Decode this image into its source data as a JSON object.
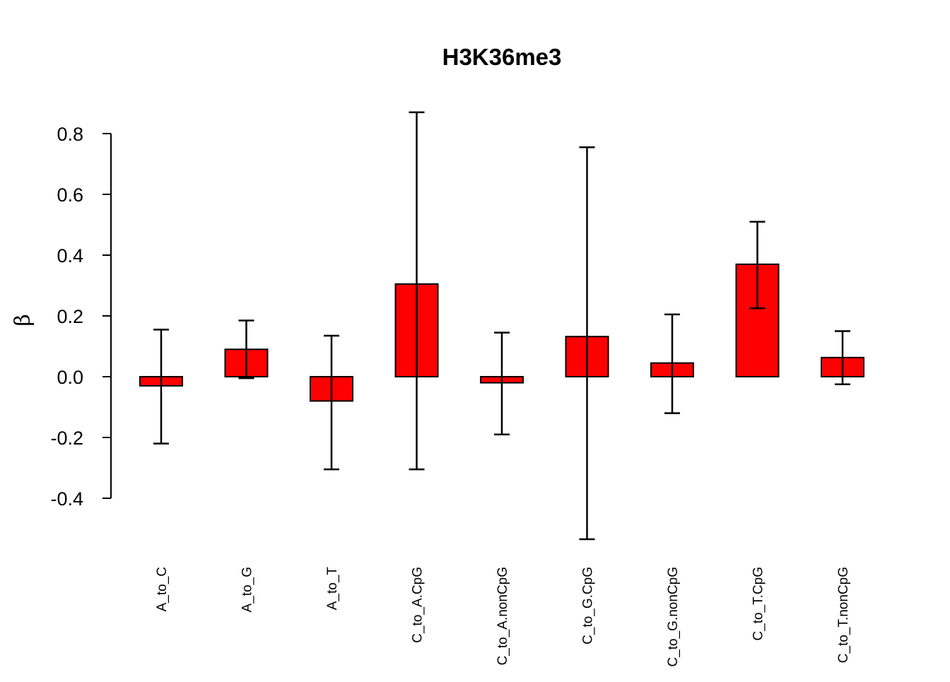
{
  "chart_data": {
    "type": "bar",
    "title": "H3K36me3",
    "xlabel": "",
    "ylabel": "β",
    "categories": [
      "A_to_C",
      "A_to_G",
      "A_to_T",
      "C_to_A.CpG",
      "C_to_A.nonCpG",
      "C_to_G.CpG",
      "C_to_G.nonCpG",
      "C_to_T.CpG",
      "C_to_T.nonCpG"
    ],
    "series": [
      {
        "values": [
          -0.03,
          0.09,
          -0.08,
          0.305,
          -0.02,
          0.132,
          0.045,
          0.37,
          0.063
        ],
        "error_lower": [
          -0.22,
          -0.005,
          -0.305,
          -0.305,
          -0.19,
          -0.535,
          -0.12,
          0.225,
          -0.025
        ],
        "error_upper": [
          0.155,
          0.185,
          0.135,
          0.87,
          0.145,
          0.755,
          0.205,
          0.51,
          0.15
        ],
        "color": "#ff0000"
      }
    ],
    "yticks": [
      -0.4,
      -0.2,
      0.0,
      0.2,
      0.4,
      0.6,
      0.8
    ],
    "ytick_labels": [
      "-0.4",
      "-0.2",
      "0.0",
      "0.2",
      "0.4",
      "0.6",
      "0.8"
    ],
    "ylim": [
      -0.4,
      0.8
    ],
    "grid": false,
    "legend": "none"
  }
}
